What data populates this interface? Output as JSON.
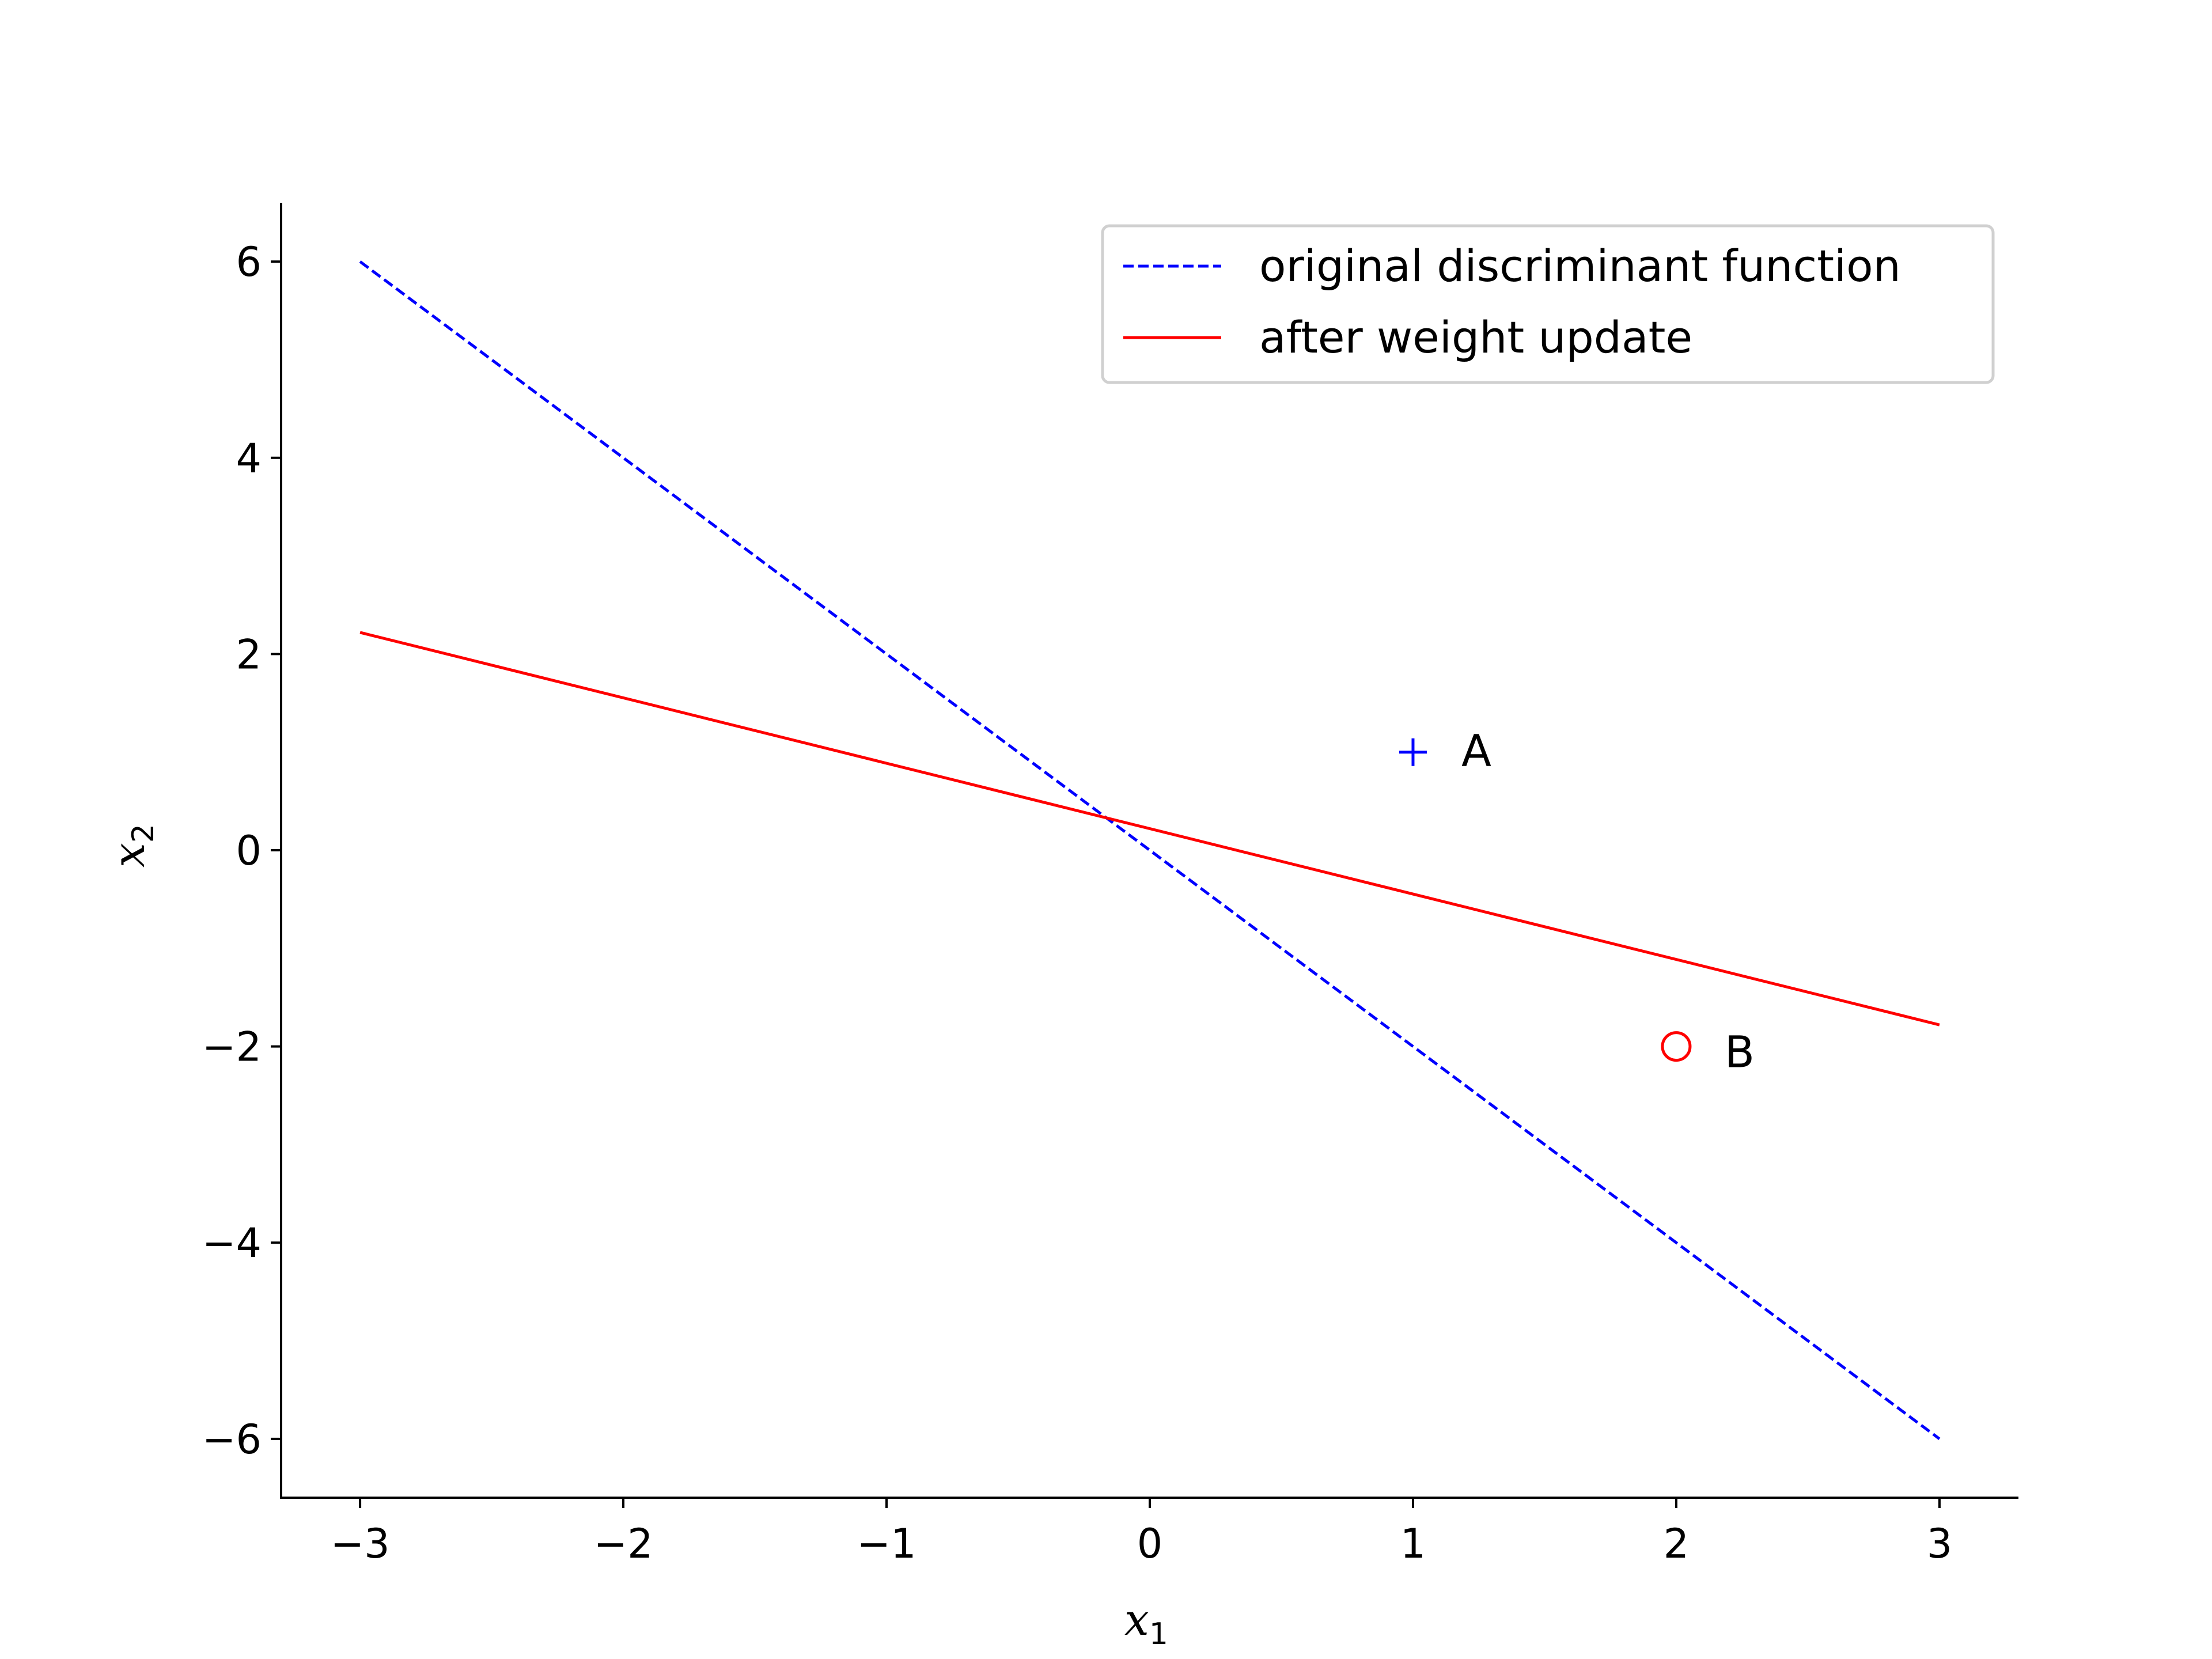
{
  "chart_data": {
    "type": "line",
    "xlabel": "x",
    "xlabel_sub": "1",
    "ylabel": "x",
    "ylabel_sub": "2",
    "xlim": [
      -3.3,
      3.3
    ],
    "ylim": [
      -6.6,
      6.6
    ],
    "xticks": [
      {
        "value": -3,
        "label": "−3"
      },
      {
        "value": -2,
        "label": "−2"
      },
      {
        "value": -1,
        "label": "−1"
      },
      {
        "value": 0,
        "label": "0"
      },
      {
        "value": 1,
        "label": "1"
      },
      {
        "value": 2,
        "label": "2"
      },
      {
        "value": 3,
        "label": "3"
      }
    ],
    "yticks": [
      {
        "value": -6,
        "label": "−6"
      },
      {
        "value": -4,
        "label": "−4"
      },
      {
        "value": -2,
        "label": "−2"
      },
      {
        "value": 0,
        "label": "0"
      },
      {
        "value": 2,
        "label": "2"
      },
      {
        "value": 4,
        "label": "4"
      },
      {
        "value": 6,
        "label": "6"
      }
    ],
    "grid": false,
    "legend_position": "top-right",
    "series": [
      {
        "name": "original discriminant function",
        "color": "#0000ff",
        "style": "dashed",
        "x": [
          -3,
          3
        ],
        "y": [
          6,
          -6
        ]
      },
      {
        "name": "after weight update",
        "color": "#ff0000",
        "style": "solid",
        "x": [
          -3,
          3
        ],
        "y": [
          2.22,
          -1.78
        ]
      }
    ],
    "points": [
      {
        "label": "A",
        "x": 1,
        "y": 1,
        "marker": "plus",
        "color": "#0000ff"
      },
      {
        "label": "B",
        "x": 2,
        "y": -2,
        "marker": "circle",
        "color": "#ff0000"
      }
    ]
  }
}
